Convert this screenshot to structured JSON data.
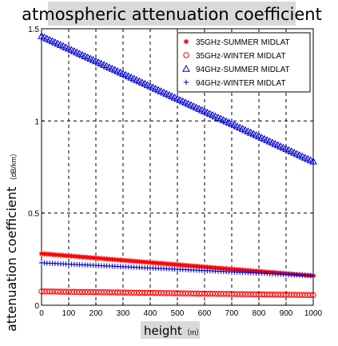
{
  "chart_data": {
    "type": "scatter",
    "title": "atmospheric attenuation coefficient",
    "xlabel": "height",
    "xlabel_unit": "（m）",
    "ylabel": "attenuation coefficient",
    "ylabel_unit": "（dB/km）",
    "xlim": [
      0,
      1000
    ],
    "ylim": [
      0,
      1.5
    ],
    "xticks": [
      "0",
      "100",
      "200",
      "300",
      "400",
      "500",
      "600",
      "700",
      "800",
      "900",
      "1000"
    ],
    "yticks": [
      "0",
      "0.5",
      "1",
      "1.5"
    ],
    "grid": true,
    "legend_position": "top-right",
    "x_step": 10,
    "series": [
      {
        "name": "35GHz-SUMMER MIDLAT",
        "marker": "star",
        "color": "#ff0000",
        "y_start": 0.28,
        "y_end": 0.16
      },
      {
        "name": "35GHz-WINTER MIDLAT",
        "marker": "circle",
        "color": "#ff0000",
        "y_start": 0.075,
        "y_end": 0.055
      },
      {
        "name": "94GHz-SUMMER MIDLAT",
        "marker": "triangle",
        "color": "#0000cc",
        "y_start": 1.46,
        "y_end": 0.78
      },
      {
        "name": "94GHz-WINTER MIDLAT",
        "marker": "plus",
        "color": "#0000cc",
        "y_start": 0.23,
        "y_end": 0.16
      }
    ]
  }
}
